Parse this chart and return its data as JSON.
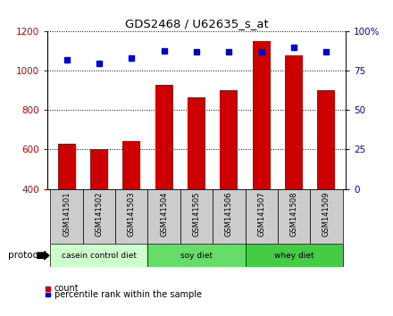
{
  "title": "GDS2468 / U62635_s_at",
  "samples": [
    "GSM141501",
    "GSM141502",
    "GSM141503",
    "GSM141504",
    "GSM141505",
    "GSM141506",
    "GSM141507",
    "GSM141508",
    "GSM141509"
  ],
  "counts": [
    630,
    600,
    645,
    930,
    865,
    900,
    1150,
    1080,
    900
  ],
  "percentile_ranks": [
    82,
    80,
    83,
    88,
    87,
    87,
    87,
    90,
    87
  ],
  "left_ylim": [
    400,
    1200
  ],
  "left_yticks": [
    400,
    600,
    800,
    1000,
    1200
  ],
  "right_ylim": [
    0,
    100
  ],
  "right_yticks": [
    0,
    25,
    50,
    75,
    100
  ],
  "right_yticklabels": [
    "0",
    "25",
    "50",
    "75",
    "100%"
  ],
  "bar_color": "#CC0000",
  "dot_color": "#0000CC",
  "groups": [
    {
      "label": "casein control diet",
      "indices": [
        0,
        1,
        2
      ],
      "color": "#ccffcc"
    },
    {
      "label": "soy diet",
      "indices": [
        3,
        4,
        5
      ],
      "color": "#66dd66"
    },
    {
      "label": "whey diet",
      "indices": [
        6,
        7,
        8
      ],
      "color": "#44cc44"
    }
  ],
  "protocol_label": "protocol",
  "tick_label_color": "#CC0000",
  "right_tick_color": "#0000CC",
  "grid_color": "#000000",
  "bar_bottom": 400,
  "legend_count_label": "count",
  "legend_pct_label": "percentile rank within the sample",
  "sample_bg_color": "#cccccc",
  "group_border_color": "#000000"
}
